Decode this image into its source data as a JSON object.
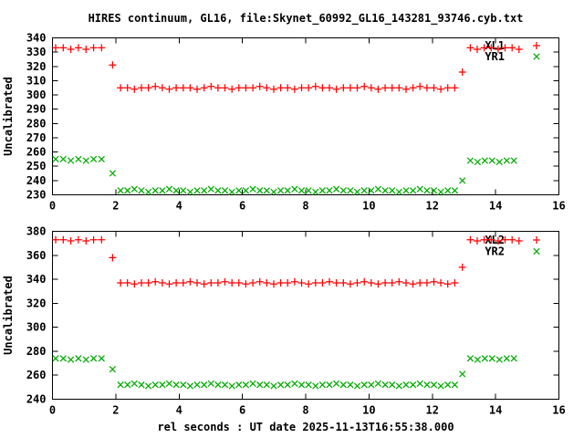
{
  "title": "HIRES continuum, GL16, file:Skynet_60992_GL16_143281_93746.cyb.txt",
  "x_axis_title": "rel seconds : UT date 2025-11-13T16:55:38.000",
  "colors": {
    "background": "#ffffff",
    "text": "#000000",
    "axis": "#000000",
    "series_plus": "#ff0000",
    "series_cross": "#00aa00"
  },
  "chart_data": [
    {
      "type": "scatter",
      "title": "",
      "xlabel": "",
      "ylabel": "Uncalibrated",
      "xlim": [
        0,
        16
      ],
      "ylim": [
        230,
        340
      ],
      "xticks": [
        0,
        2,
        4,
        6,
        8,
        10,
        12,
        14,
        16
      ],
      "yticks": [
        230,
        240,
        250,
        260,
        270,
        280,
        290,
        300,
        310,
        320,
        330,
        340
      ],
      "grid": false,
      "legend_position": "top-right-inside",
      "series": [
        {
          "name": "XL1",
          "marker": "plus",
          "color": "#ff0000",
          "x": [
            0.1,
            0.34,
            0.58,
            0.82,
            1.06,
            1.3,
            1.55,
            1.9,
            2.15,
            2.37,
            2.59,
            2.81,
            3.03,
            3.25,
            3.47,
            3.69,
            3.91,
            4.13,
            4.35,
            4.57,
            4.79,
            5.01,
            5.23,
            5.45,
            5.67,
            5.89,
            6.11,
            6.33,
            6.55,
            6.77,
            6.99,
            7.21,
            7.43,
            7.65,
            7.87,
            8.09,
            8.31,
            8.53,
            8.75,
            8.97,
            9.19,
            9.41,
            9.63,
            9.85,
            10.07,
            10.29,
            10.51,
            10.73,
            10.95,
            11.17,
            11.39,
            11.61,
            11.83,
            12.05,
            12.27,
            12.49,
            12.71,
            12.95,
            13.2,
            13.42,
            13.64,
            13.86,
            14.08,
            14.3,
            14.52,
            14.74
          ],
          "y": [
            333,
            333,
            332,
            333,
            332,
            333,
            333,
            321,
            305,
            305,
            304,
            305,
            305,
            306,
            305,
            304,
            305,
            305,
            305,
            304,
            305,
            306,
            305,
            305,
            304,
            305,
            305,
            305,
            306,
            305,
            304,
            305,
            305,
            304,
            305,
            305,
            306,
            305,
            305,
            304,
            305,
            305,
            305,
            306,
            305,
            304,
            305,
            305,
            305,
            304,
            305,
            306,
            305,
            305,
            304,
            305,
            305,
            316,
            333,
            332,
            333,
            333,
            332,
            333,
            333,
            332
          ]
        },
        {
          "name": "YR1",
          "marker": "cross",
          "color": "#00aa00",
          "x": [
            0.1,
            0.34,
            0.58,
            0.82,
            1.06,
            1.3,
            1.55,
            1.9,
            2.15,
            2.37,
            2.59,
            2.81,
            3.03,
            3.25,
            3.47,
            3.69,
            3.91,
            4.13,
            4.35,
            4.57,
            4.79,
            5.01,
            5.23,
            5.45,
            5.67,
            5.89,
            6.11,
            6.33,
            6.55,
            6.77,
            6.99,
            7.21,
            7.43,
            7.65,
            7.87,
            8.09,
            8.31,
            8.53,
            8.75,
            8.97,
            9.19,
            9.41,
            9.63,
            9.85,
            10.07,
            10.29,
            10.51,
            10.73,
            10.95,
            11.17,
            11.39,
            11.61,
            11.83,
            12.05,
            12.27,
            12.49,
            12.71,
            12.95,
            13.2,
            13.43,
            13.66,
            13.89,
            14.12,
            14.35,
            14.58
          ],
          "y": [
            255,
            255,
            254,
            255,
            254,
            255,
            255,
            245,
            233,
            233,
            234,
            233,
            232,
            233,
            233,
            234,
            233,
            233,
            232,
            233,
            233,
            234,
            233,
            233,
            232,
            233,
            233,
            234,
            233,
            233,
            232,
            233,
            233,
            234,
            233,
            233,
            232,
            233,
            233,
            234,
            233,
            233,
            232,
            233,
            233,
            234,
            233,
            233,
            232,
            233,
            233,
            234,
            233,
            233,
            232,
            233,
            233,
            240,
            254,
            253,
            254,
            254,
            253,
            254,
            254
          ]
        }
      ]
    },
    {
      "type": "scatter",
      "title": "",
      "xlabel": "",
      "ylabel": "Uncalibrated",
      "xlim": [
        0,
        16
      ],
      "ylim": [
        240,
        380
      ],
      "xticks": [
        0,
        2,
        4,
        6,
        8,
        10,
        12,
        14,
        16
      ],
      "yticks": [
        240,
        260,
        280,
        300,
        320,
        340,
        360,
        380
      ],
      "grid": false,
      "legend_position": "top-right-inside",
      "series": [
        {
          "name": "XL2",
          "marker": "plus",
          "color": "#ff0000",
          "x": [
            0.1,
            0.34,
            0.58,
            0.82,
            1.06,
            1.3,
            1.55,
            1.9,
            2.15,
            2.37,
            2.59,
            2.81,
            3.03,
            3.25,
            3.47,
            3.69,
            3.91,
            4.13,
            4.35,
            4.57,
            4.79,
            5.01,
            5.23,
            5.45,
            5.67,
            5.89,
            6.11,
            6.33,
            6.55,
            6.77,
            6.99,
            7.21,
            7.43,
            7.65,
            7.87,
            8.09,
            8.31,
            8.53,
            8.75,
            8.97,
            9.19,
            9.41,
            9.63,
            9.85,
            10.07,
            10.29,
            10.51,
            10.73,
            10.95,
            11.17,
            11.39,
            11.61,
            11.83,
            12.05,
            12.27,
            12.49,
            12.71,
            12.95,
            13.2,
            13.42,
            13.64,
            13.86,
            14.08,
            14.3,
            14.52,
            14.74
          ],
          "y": [
            373,
            373,
            372,
            373,
            372,
            373,
            373,
            358,
            337,
            337,
            336,
            337,
            337,
            338,
            337,
            336,
            337,
            337,
            338,
            337,
            336,
            337,
            337,
            338,
            337,
            337,
            336,
            337,
            338,
            337,
            336,
            337,
            337,
            338,
            337,
            336,
            337,
            337,
            338,
            337,
            337,
            336,
            337,
            338,
            337,
            336,
            337,
            337,
            338,
            337,
            336,
            337,
            337,
            338,
            337,
            336,
            337,
            350,
            373,
            372,
            373,
            373,
            372,
            373,
            373,
            372
          ]
        },
        {
          "name": "YR2",
          "marker": "cross",
          "color": "#00aa00",
          "x": [
            0.1,
            0.34,
            0.58,
            0.82,
            1.06,
            1.3,
            1.55,
            1.9,
            2.15,
            2.37,
            2.59,
            2.81,
            3.03,
            3.25,
            3.47,
            3.69,
            3.91,
            4.13,
            4.35,
            4.57,
            4.79,
            5.01,
            5.23,
            5.45,
            5.67,
            5.89,
            6.11,
            6.33,
            6.55,
            6.77,
            6.99,
            7.21,
            7.43,
            7.65,
            7.87,
            8.09,
            8.31,
            8.53,
            8.75,
            8.97,
            9.19,
            9.41,
            9.63,
            9.85,
            10.07,
            10.29,
            10.51,
            10.73,
            10.95,
            11.17,
            11.39,
            11.61,
            11.83,
            12.05,
            12.27,
            12.49,
            12.71,
            12.95,
            13.2,
            13.43,
            13.66,
            13.89,
            14.12,
            14.35,
            14.58
          ],
          "y": [
            274,
            274,
            273,
            274,
            273,
            274,
            274,
            265,
            252,
            252,
            253,
            252,
            251,
            252,
            252,
            253,
            252,
            252,
            251,
            252,
            252,
            253,
            252,
            252,
            251,
            252,
            252,
            253,
            252,
            252,
            251,
            252,
            252,
            253,
            252,
            252,
            251,
            252,
            252,
            253,
            252,
            252,
            251,
            252,
            252,
            253,
            252,
            252,
            251,
            252,
            252,
            253,
            252,
            252,
            251,
            252,
            252,
            261,
            274,
            273,
            274,
            274,
            273,
            274,
            274
          ]
        }
      ]
    }
  ]
}
